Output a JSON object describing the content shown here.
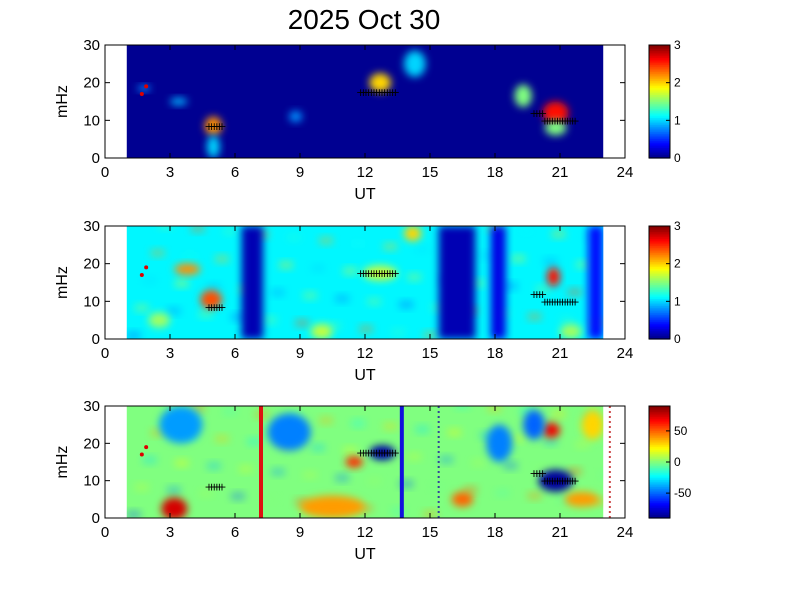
{
  "figure": {
    "title": "2025 Oct 30"
  },
  "chart_data": [
    {
      "type": "heatmap",
      "title": "2025 Oct 30",
      "xlabel": "UT",
      "ylabel": "mHz",
      "xlim": [
        0,
        24
      ],
      "ylim": [
        0,
        30
      ],
      "xticks": [
        0,
        3,
        6,
        9,
        12,
        15,
        18,
        21,
        24
      ],
      "yticks": [
        0,
        10,
        20,
        30
      ],
      "data_xrange": [
        1,
        23
      ],
      "colorbar": {
        "range": [
          0,
          3
        ],
        "ticks": [
          0,
          1,
          2,
          3
        ]
      },
      "background_value": 0.05,
      "blobs": [
        {
          "x": 5.0,
          "y": 8.5,
          "value": 2.2,
          "width": 0.4,
          "height": 2.5
        },
        {
          "x": 5.0,
          "y": 3.0,
          "value": 1.0,
          "width": 0.3,
          "height": 3.0
        },
        {
          "x": 3.4,
          "y": 15.0,
          "value": 0.9,
          "width": 0.4,
          "height": 1.0
        },
        {
          "x": 8.8,
          "y": 11.0,
          "value": 0.8,
          "width": 0.3,
          "height": 1.5
        },
        {
          "x": 1.8,
          "y": 18.5,
          "value": 0.8,
          "width": 0.3,
          "height": 0.8
        },
        {
          "x": 12.7,
          "y": 20.0,
          "value": 2.0,
          "width": 0.5,
          "height": 2.5
        },
        {
          "x": 14.3,
          "y": 25.0,
          "value": 1.0,
          "width": 0.5,
          "height": 3.5
        },
        {
          "x": 19.3,
          "y": 16.5,
          "value": 1.5,
          "width": 0.4,
          "height": 3.0
        },
        {
          "x": 20.8,
          "y": 12.0,
          "value": 2.6,
          "width": 0.6,
          "height": 3.0
        },
        {
          "x": 20.8,
          "y": 8.0,
          "value": 1.5,
          "width": 0.5,
          "height": 2.0
        }
      ],
      "markers": [
        {
          "x_start": 4.8,
          "x_end": 5.4,
          "y": 8.5
        },
        {
          "x_start": 11.8,
          "x_end": 13.4,
          "y": 17.5
        },
        {
          "x_start": 20.3,
          "x_end": 21.7,
          "y": 10.0
        },
        {
          "x_start": 19.8,
          "x_end": 20.2,
          "y": 12.0
        }
      ],
      "red_points": [
        {
          "x": 1.7,
          "y": 17.0
        },
        {
          "x": 1.9,
          "y": 19.0
        }
      ]
    },
    {
      "type": "heatmap",
      "xlabel": "UT",
      "ylabel": "mHz",
      "xlim": [
        0,
        24
      ],
      "ylim": [
        0,
        30
      ],
      "xticks": [
        0,
        3,
        6,
        9,
        12,
        15,
        18,
        21,
        24
      ],
      "yticks": [
        0,
        10,
        20,
        30
      ],
      "data_xrange": [
        1,
        23
      ],
      "colorbar": {
        "range": [
          0,
          3
        ],
        "ticks": [
          0,
          1,
          2,
          3
        ]
      },
      "background_value": 1.1,
      "low_bands": [
        {
          "x_start": 6.3,
          "x_end": 7.3,
          "value": 0.15
        },
        {
          "x_start": 15.4,
          "x_end": 17.1,
          "value": 0.15
        },
        {
          "x_start": 17.8,
          "x_end": 18.5,
          "value": 0.3
        },
        {
          "x_start": 22.3,
          "x_end": 23.0,
          "value": 0.4
        }
      ],
      "blobs": [
        {
          "x": 3.8,
          "y": 18.5,
          "value": 2.2,
          "width": 0.6,
          "height": 1.5
        },
        {
          "x": 4.9,
          "y": 10.5,
          "value": 2.4,
          "width": 0.5,
          "height": 2.5
        },
        {
          "x": 12.7,
          "y": 17.5,
          "value": 1.7,
          "width": 0.8,
          "height": 2.0
        },
        {
          "x": 20.7,
          "y": 16.5,
          "value": 2.6,
          "width": 0.3,
          "height": 2.5
        },
        {
          "x": 14.2,
          "y": 28.0,
          "value": 2.0,
          "width": 0.4,
          "height": 2.0
        },
        {
          "x": 2.5,
          "y": 5.0,
          "value": 1.6,
          "width": 0.5,
          "height": 2.0
        },
        {
          "x": 10.0,
          "y": 2.0,
          "value": 1.7,
          "width": 0.5,
          "height": 2.0
        },
        {
          "x": 21.5,
          "y": 2.0,
          "value": 1.6,
          "width": 0.5,
          "height": 2.0
        }
      ],
      "markers": [
        {
          "x_start": 4.8,
          "x_end": 5.4,
          "y": 8.5
        },
        {
          "x_start": 11.8,
          "x_end": 13.4,
          "y": 17.5
        },
        {
          "x_start": 20.3,
          "x_end": 21.7,
          "y": 10.0
        },
        {
          "x_start": 19.8,
          "x_end": 20.2,
          "y": 12.0
        }
      ],
      "red_points": [
        {
          "x": 1.7,
          "y": 17.0
        },
        {
          "x": 1.9,
          "y": 19.0
        }
      ]
    },
    {
      "type": "heatmap",
      "xlabel": "UT",
      "ylabel": "mHz",
      "xlim": [
        0,
        24
      ],
      "ylim": [
        0,
        30
      ],
      "xticks": [
        0,
        3,
        6,
        9,
        12,
        15,
        18,
        21,
        24
      ],
      "yticks": [
        0,
        10,
        20,
        30
      ],
      "data_xrange": [
        1,
        23
      ],
      "colorbar": {
        "range": [
          -90,
          90
        ],
        "ticks": [
          50,
          0,
          -50
        ]
      },
      "background_value": 0,
      "blobs": [
        {
          "x": 3.2,
          "y": 2.5,
          "value": 75,
          "width": 0.6,
          "height": 3.0
        },
        {
          "x": 12.8,
          "y": 17.5,
          "value": -85,
          "width": 0.6,
          "height": 2.0
        },
        {
          "x": 20.8,
          "y": 10.0,
          "value": -85,
          "width": 0.8,
          "height": 3.0
        },
        {
          "x": 20.6,
          "y": 23.5,
          "value": 70,
          "width": 0.4,
          "height": 2.0
        },
        {
          "x": 11.5,
          "y": 15.0,
          "value": 60,
          "width": 0.4,
          "height": 1.5
        },
        {
          "x": 8.5,
          "y": 23.0,
          "value": -45,
          "width": 1.0,
          "height": 5.0
        },
        {
          "x": 3.5,
          "y": 25.0,
          "value": -40,
          "width": 1.0,
          "height": 5.0
        },
        {
          "x": 16.5,
          "y": 5.0,
          "value": 50,
          "width": 0.5,
          "height": 2.0
        },
        {
          "x": 10.5,
          "y": 3.0,
          "value": 40,
          "width": 1.5,
          "height": 3.0
        },
        {
          "x": 18.2,
          "y": 20.0,
          "value": -45,
          "width": 0.6,
          "height": 5.0
        },
        {
          "x": 19.8,
          "y": 25.0,
          "value": -50,
          "width": 0.5,
          "height": 4.0
        },
        {
          "x": 22.5,
          "y": 25.0,
          "value": 30,
          "width": 0.5,
          "height": 4.0
        },
        {
          "x": 22.0,
          "y": 5.0,
          "value": 40,
          "width": 0.8,
          "height": 2.0
        }
      ],
      "vertical_lines": [
        {
          "x": 7.2,
          "color": "#dd1111"
        },
        {
          "x": 13.7,
          "color": "#1111dd"
        }
      ],
      "dashed_lines": [
        {
          "x": 15.4,
          "color": "#334499"
        },
        {
          "x": 23.3,
          "color": "#cc4444"
        }
      ],
      "markers": [
        {
          "x_start": 4.8,
          "x_end": 5.4,
          "y": 8.5
        },
        {
          "x_start": 11.8,
          "x_end": 13.4,
          "y": 17.5
        },
        {
          "x_start": 20.3,
          "x_end": 21.7,
          "y": 10.0
        },
        {
          "x_start": 19.8,
          "x_end": 20.2,
          "y": 12.0
        }
      ],
      "red_points": [
        {
          "x": 1.7,
          "y": 17.0
        },
        {
          "x": 1.9,
          "y": 19.0
        }
      ]
    }
  ]
}
